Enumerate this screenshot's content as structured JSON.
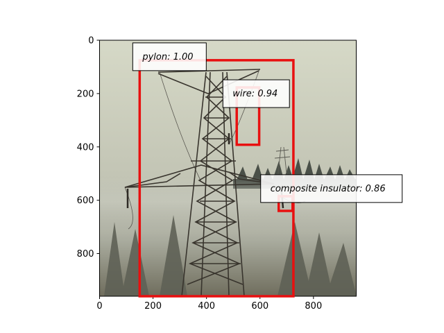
{
  "image": {
    "description_icon": "transmission-pylon-photo",
    "width_units": 960,
    "height_units": 960
  },
  "axes": {
    "x_ticks": [
      0,
      200,
      400,
      600,
      800
    ],
    "y_ticks": [
      0,
      200,
      400,
      600,
      800
    ],
    "xlim": [
      0,
      960
    ],
    "ylim": [
      960,
      0
    ]
  },
  "detections": [
    {
      "label": "pylon: 1.00",
      "x0": 150,
      "y0": 75,
      "x1": 725,
      "y1": 960
    },
    {
      "label": "wire: 0.94",
      "x0": 513,
      "y0": 177,
      "x1": 597,
      "y1": 392
    },
    {
      "label": "composite insulator: 0.86",
      "x0": 670,
      "y0": 585,
      "x1": 722,
      "y1": 640
    }
  ],
  "colors": {
    "box": "#e81010",
    "sky_top": "#d8dac8",
    "sky_bottom": "#b8b9a6",
    "fog": "#c4c6bb",
    "ground": "#6d6b5c",
    "steel": "#3a3630"
  }
}
